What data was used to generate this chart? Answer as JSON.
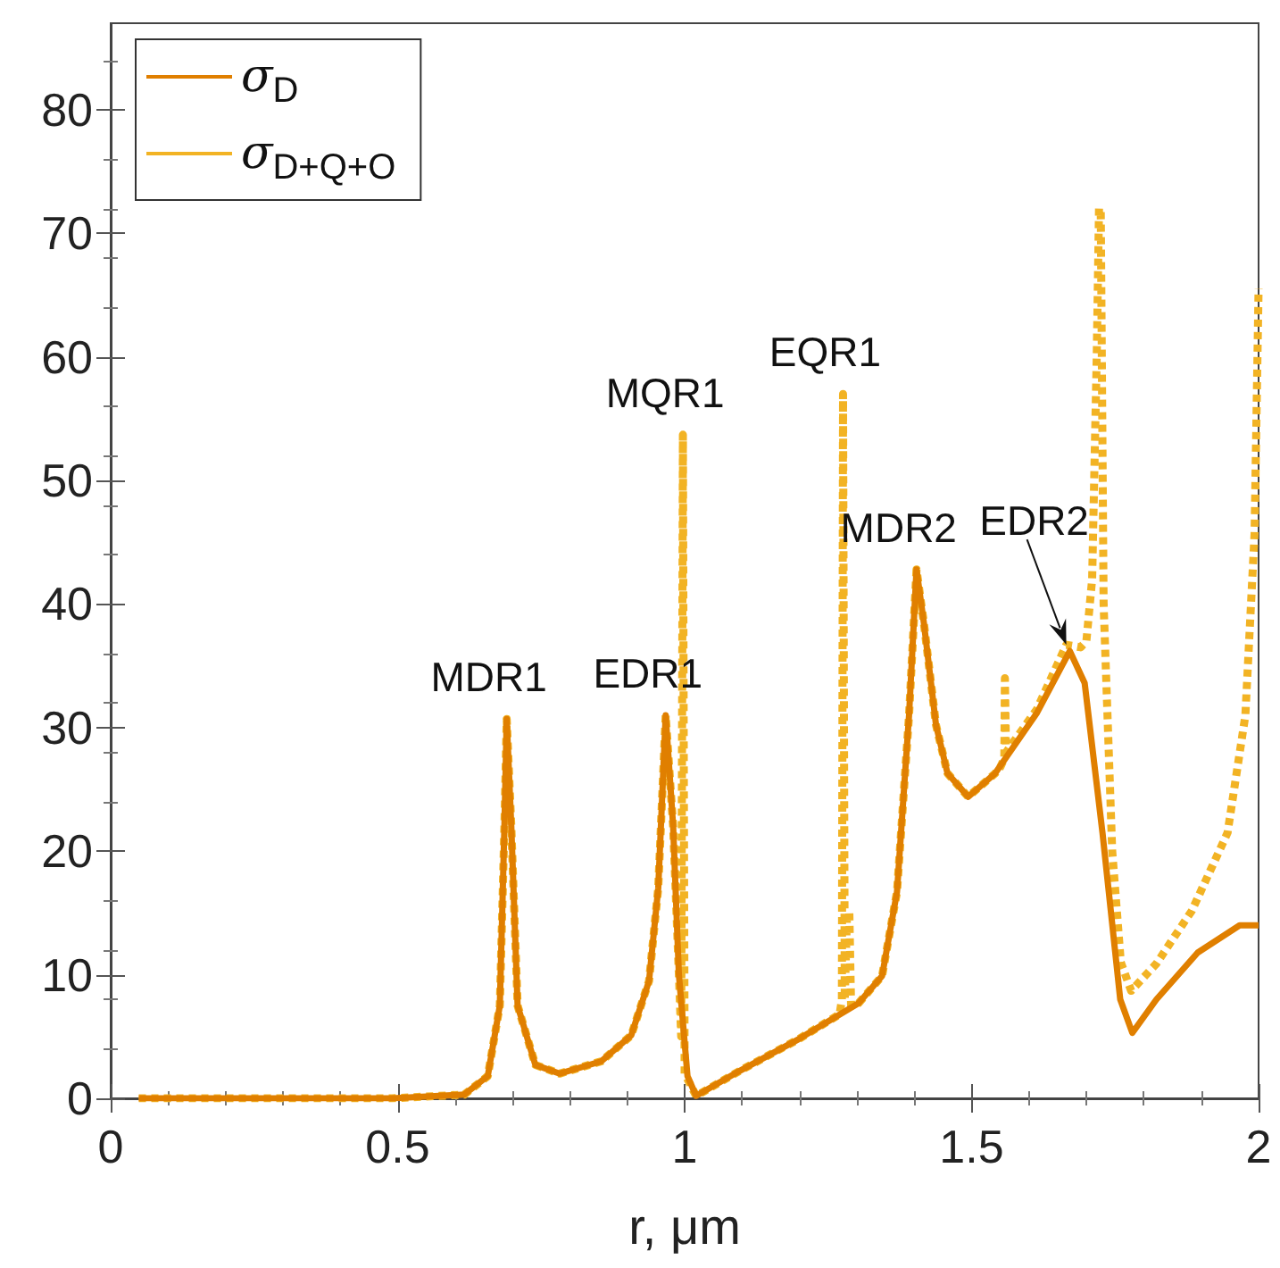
{
  "chart_data": {
    "type": "line",
    "xlabel": "r, μm",
    "xlim": [
      0,
      2
    ],
    "xticks": [
      0,
      0.5,
      1,
      1.5,
      2
    ],
    "ylim": [
      0,
      87
    ],
    "yticks": [
      0,
      10,
      20,
      30,
      40,
      50,
      60,
      70,
      80
    ],
    "grid": false,
    "legend": "top left",
    "marker": "none",
    "series": [
      {
        "name": "σ$_{D}$",
        "color": "#e07f00",
        "line_style": "solid",
        "x": [
          0.049,
          0.49,
          0.616,
          0.657,
          0.678,
          0.686,
          0.69,
          0.698,
          0.709,
          0.74,
          0.782,
          0.855,
          0.907,
          0.938,
          0.954,
          0.967,
          0.98,
          0.99,
          1.005,
          1.02,
          1.095,
          1.199,
          1.303,
          1.344,
          1.37,
          1.391,
          1.404,
          1.417,
          1.438,
          1.458,
          1.494,
          1.541,
          1.614,
          1.671,
          1.697,
          1.728,
          1.759,
          1.78,
          1.822,
          1.894,
          1.967,
          2.0
        ],
        "values": [
          0,
          0,
          0.3,
          1.8,
          7.5,
          22,
          30.7,
          22,
          7.5,
          2.7,
          2.0,
          3,
          5.1,
          9.5,
          17,
          31,
          22,
          10,
          1.8,
          0.2,
          2.2,
          4.8,
          7.7,
          9.9,
          16.7,
          31,
          42.8,
          38.4,
          30.2,
          26.3,
          24.4,
          26.3,
          31.2,
          36.2,
          33.6,
          21.5,
          8,
          5.3,
          8,
          11.8,
          14,
          14
        ]
      },
      {
        "name": "σ$_{D+Q+O}$",
        "color": "#f2b324",
        "line_style": "dotted",
        "x": [
          0.049,
          0.49,
          0.616,
          0.657,
          0.678,
          0.686,
          0.69,
          0.698,
          0.709,
          0.74,
          0.782,
          0.855,
          0.907,
          0.938,
          0.954,
          0.967,
          0.98,
          0.99,
          0.994,
          0.997,
          1.0,
          1.02,
          1.095,
          1.199,
          1.27,
          1.274,
          1.276,
          1.279,
          1.283,
          1.287,
          1.29,
          1.303,
          1.344,
          1.37,
          1.391,
          1.404,
          1.417,
          1.438,
          1.458,
          1.494,
          1.541,
          1.55,
          1.557,
          1.558,
          1.56,
          1.614,
          1.665,
          1.69,
          1.7,
          1.71,
          1.718,
          1.722,
          1.725,
          1.73,
          1.745,
          1.76,
          1.778,
          1.822,
          1.884,
          1.946,
          1.977,
          1.993,
          2.0
        ],
        "values": [
          0,
          0,
          0.3,
          1.8,
          7.5,
          22,
          30.7,
          22,
          7.5,
          2.7,
          2.0,
          3,
          5.1,
          9.5,
          17,
          31,
          22,
          10,
          5,
          53.7,
          2,
          0.2,
          2.2,
          4.8,
          6.8,
          8,
          57,
          8,
          15,
          15,
          7.5,
          7.7,
          9.9,
          16.7,
          31,
          42.8,
          38.4,
          30.2,
          26.3,
          24.4,
          26.3,
          26.8,
          27.5,
          34,
          28,
          31.5,
          36.7,
          36.5,
          37,
          42,
          60,
          72,
          72,
          40,
          20,
          11,
          8.7,
          10.9,
          15.2,
          21.5,
          31,
          45.7,
          65.5
        ]
      }
    ],
    "annotations": [
      {
        "text": "MDR1",
        "x": 0.69,
        "y": 30.7
      },
      {
        "text": "EDR1",
        "x": 0.967,
        "y": 31
      },
      {
        "text": "MQR1",
        "x": 0.997,
        "y": 53.7
      },
      {
        "text": "EQR1",
        "x": 1.276,
        "y": 57
      },
      {
        "text": "MDR2",
        "x": 1.404,
        "y": 42.8
      },
      {
        "text": "EDR2",
        "x": 1.665,
        "y": 36.7
      }
    ]
  }
}
